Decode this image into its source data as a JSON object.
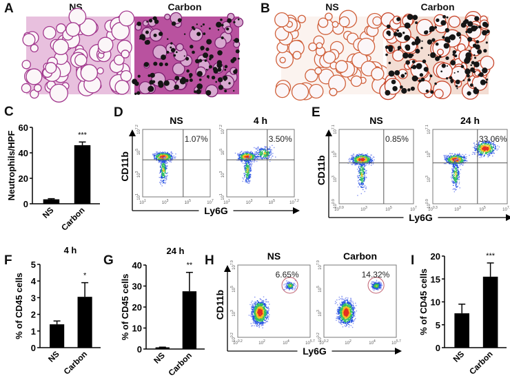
{
  "panels": {
    "A": {
      "label": "A",
      "titles": [
        "NS",
        "Carbon"
      ]
    },
    "B": {
      "label": "B",
      "titles": [
        "NS",
        "Carbon"
      ]
    },
    "C": {
      "label": "C"
    },
    "D": {
      "label": "D",
      "titles": [
        "NS",
        "4 h"
      ],
      "ylabel": "CD11b",
      "xlabel": "Ly6G"
    },
    "E": {
      "label": "E",
      "titles": [
        "NS",
        "24 h"
      ],
      "ylabel": "CD11b",
      "xlabel": "Ly6G"
    },
    "F": {
      "label": "F",
      "title": "4 h"
    },
    "G": {
      "label": "G",
      "title": "24 h"
    },
    "H": {
      "label": "H",
      "titles": [
        "NS",
        "Carbon"
      ],
      "ylabel": "CD11b",
      "xlabel": "Ly6G"
    },
    "I": {
      "label": "I"
    }
  },
  "colors": {
    "bar": "#000000",
    "gate": "#c06070",
    "density_low": "#2030d0",
    "density_high": "#e02020"
  },
  "chart_data": [
    {
      "panel": "C",
      "type": "bar",
      "categories": [
        "NS",
        "Carbon"
      ],
      "values": [
        3.5,
        46
      ],
      "errors": [
        0.5,
        2.5
      ],
      "significance": [
        "",
        "***"
      ],
      "ylabel": "Neutrophils/HPF",
      "ylim": [
        0,
        60
      ],
      "yticks": [
        0,
        20,
        40,
        60
      ]
    },
    {
      "panel": "F",
      "type": "bar",
      "title": "4 h",
      "categories": [
        "NS",
        "Carbon"
      ],
      "values": [
        1.4,
        3.05
      ],
      "errors": [
        0.2,
        0.85
      ],
      "significance": [
        "",
        "*"
      ],
      "ylabel": "% of CD45 cells",
      "ylim": [
        0,
        5
      ],
      "yticks": [
        0,
        1,
        2,
        3,
        4,
        5
      ]
    },
    {
      "panel": "G",
      "type": "bar",
      "title": "24 h",
      "categories": [
        "NS",
        "Carbon"
      ],
      "values": [
        0.8,
        27.5
      ],
      "errors": [
        0.1,
        9
      ],
      "significance": [
        "",
        "**"
      ],
      "ylabel": "% of CD45 cells",
      "ylim": [
        0,
        40
      ],
      "yticks": [
        0,
        10,
        20,
        30,
        40
      ]
    },
    {
      "panel": "I",
      "type": "bar",
      "categories": [
        "NS",
        "Carbon"
      ],
      "values": [
        7.5,
        15.5
      ],
      "errors": [
        2,
        3
      ],
      "significance": [
        "",
        "***"
      ],
      "ylabel": "% of CD45 cells",
      "ylim": [
        0,
        20
      ],
      "yticks": [
        0,
        5,
        10,
        15,
        20
      ]
    },
    {
      "panel": "D",
      "type": "scatter",
      "plots": [
        {
          "title": "NS",
          "gate_percent": "1.07%",
          "xticks": [
            "1",
            "3",
            "5",
            "7"
          ],
          "yticks": [
            "1",
            "3",
            "5",
            "7.2"
          ]
        },
        {
          "title": "4 h",
          "gate_percent": "3.50%",
          "xticks": [
            "1",
            "3",
            "5",
            "7.2"
          ],
          "yticks": [
            "1",
            "3",
            "5",
            "7.2"
          ]
        }
      ]
    },
    {
      "panel": "E",
      "type": "scatter",
      "plots": [
        {
          "title": "NS",
          "gate_percent": "0.85%",
          "xticks": [
            "0.9",
            "3",
            "5",
            "7"
          ],
          "yticks": [
            "0.9",
            "3",
            "5",
            "7.1"
          ]
        },
        {
          "title": "24 h",
          "gate_percent": "33.06%",
          "xticks": [
            "0.3",
            "3",
            "5",
            "7.1"
          ],
          "yticks": [
            "0.9",
            "3",
            "5",
            "7.1"
          ]
        }
      ]
    },
    {
      "panel": "H",
      "type": "scatter",
      "plots": [
        {
          "title": "NS",
          "gate_percent": "6.65%",
          "xticks": [
            "0.2",
            "2",
            "4",
            "5.7"
          ],
          "yticks": [
            "0.2",
            "3",
            "5",
            "7.9"
          ]
        },
        {
          "title": "Carbon",
          "gate_percent": "14.32%",
          "xticks": [
            "0.2",
            "2",
            "4",
            "5.7"
          ],
          "yticks": [
            "0.2",
            "3",
            "5",
            "7.9"
          ]
        }
      ]
    }
  ]
}
